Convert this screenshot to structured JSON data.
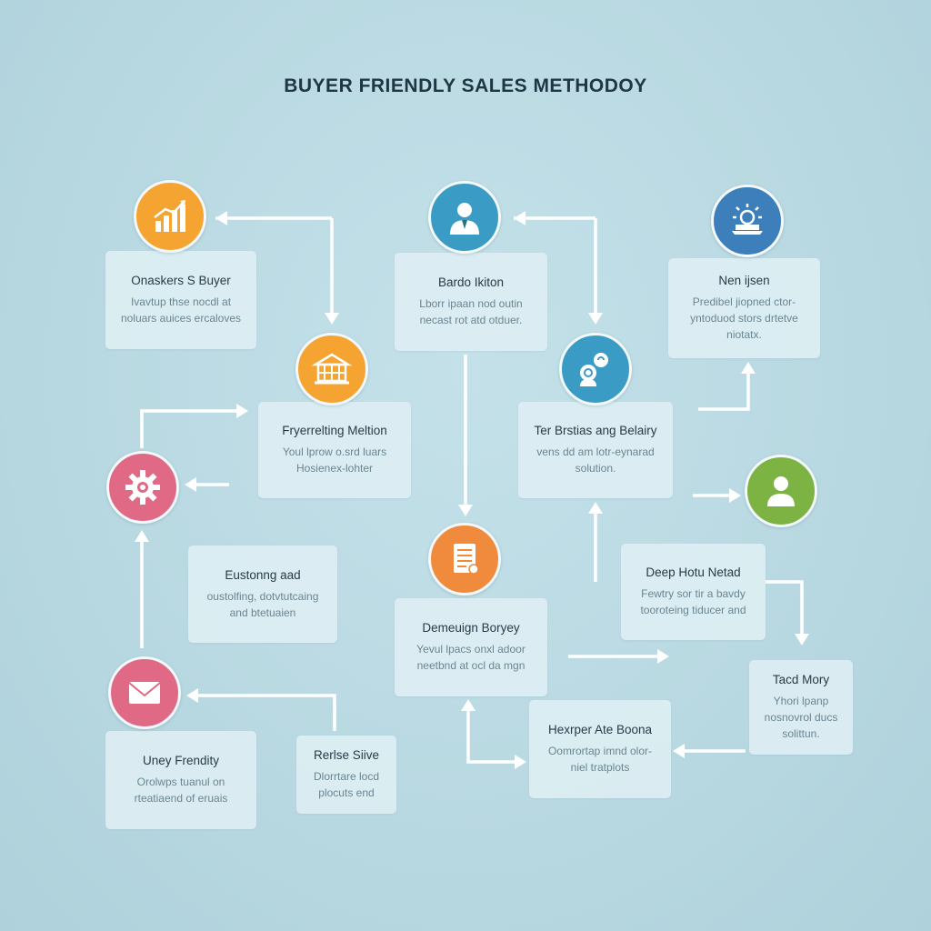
{
  "title": "BUYER FRIENDLY SALES METHODOY",
  "colors": {
    "background": "#bbdae3",
    "card": "#dfeff4",
    "arrow": "#ffffff",
    "orange": "#f5a431",
    "blue": "#3a9cc4",
    "dark_blue": "#3d7fba",
    "green": "#7cb342",
    "pink": "#e06a86",
    "coral": "#f08a3c"
  },
  "cards": {
    "c1": {
      "title": "Onaskers S Buyer",
      "lines": [
        "Ivavtup thse nocdl at",
        "noluars auices ercaloves"
      ]
    },
    "c2": {
      "title": "Bardo Ikiton",
      "lines": [
        "Lborr ipaan nod outin",
        "necast rot atd otduer."
      ]
    },
    "c3": {
      "title": "Nen ijsen",
      "lines": [
        "Predibel jiopned ctor-",
        "yntoduod stors drtetve",
        "niotatx."
      ]
    },
    "c4": {
      "title": "Fryerrelting Meltion",
      "lines": [
        "Youl lprow o.srd luars",
        "Hosienex-lohter"
      ]
    },
    "c5": {
      "title": "Ter Brstias ang Belairy",
      "lines": [
        "vens dd am lotr-eynarad",
        "solution."
      ]
    },
    "c6": {
      "title": "Eustonng aad",
      "lines": [
        "oustolfing, dotvtutcaing",
        "and btetuaien"
      ]
    },
    "c7": {
      "title": "Deep Hotu Netad",
      "lines": [
        "Fewtry sor tir a bavdy",
        "tooroteing tiducer and"
      ]
    },
    "c8": {
      "title": "Demeuign Boryey",
      "lines": [
        "Yevul lpacs onxl adoor",
        "neetbnd at ocl da mgn"
      ]
    },
    "c9": {
      "title": "Tacd Mory",
      "lines": [
        "Yhori lpanp",
        "nosnovrol ducs",
        "solittun."
      ]
    },
    "c10": {
      "title": "Uney Frendity",
      "lines": [
        "Orolwps tuanul on",
        "rteatiaend of eruais"
      ]
    },
    "c11": {
      "title": "Rerlse Siive",
      "lines": [
        "Dlorrtare locd",
        "plocuts end"
      ]
    },
    "c12": {
      "title": "Hexrper Ate Boona",
      "lines": [
        "Oomrortap imnd olor-",
        "niel tratplots"
      ]
    }
  },
  "icons": {
    "i1": "bar-chart-icon",
    "i2": "businessman-icon",
    "i3": "sun-laptop-icon",
    "i4": "building-icon",
    "i5": "chat-bubble-icon",
    "i6": "gear-icon",
    "i7": "person-icon",
    "i8": "document-icon",
    "i9": "envelope-icon"
  }
}
